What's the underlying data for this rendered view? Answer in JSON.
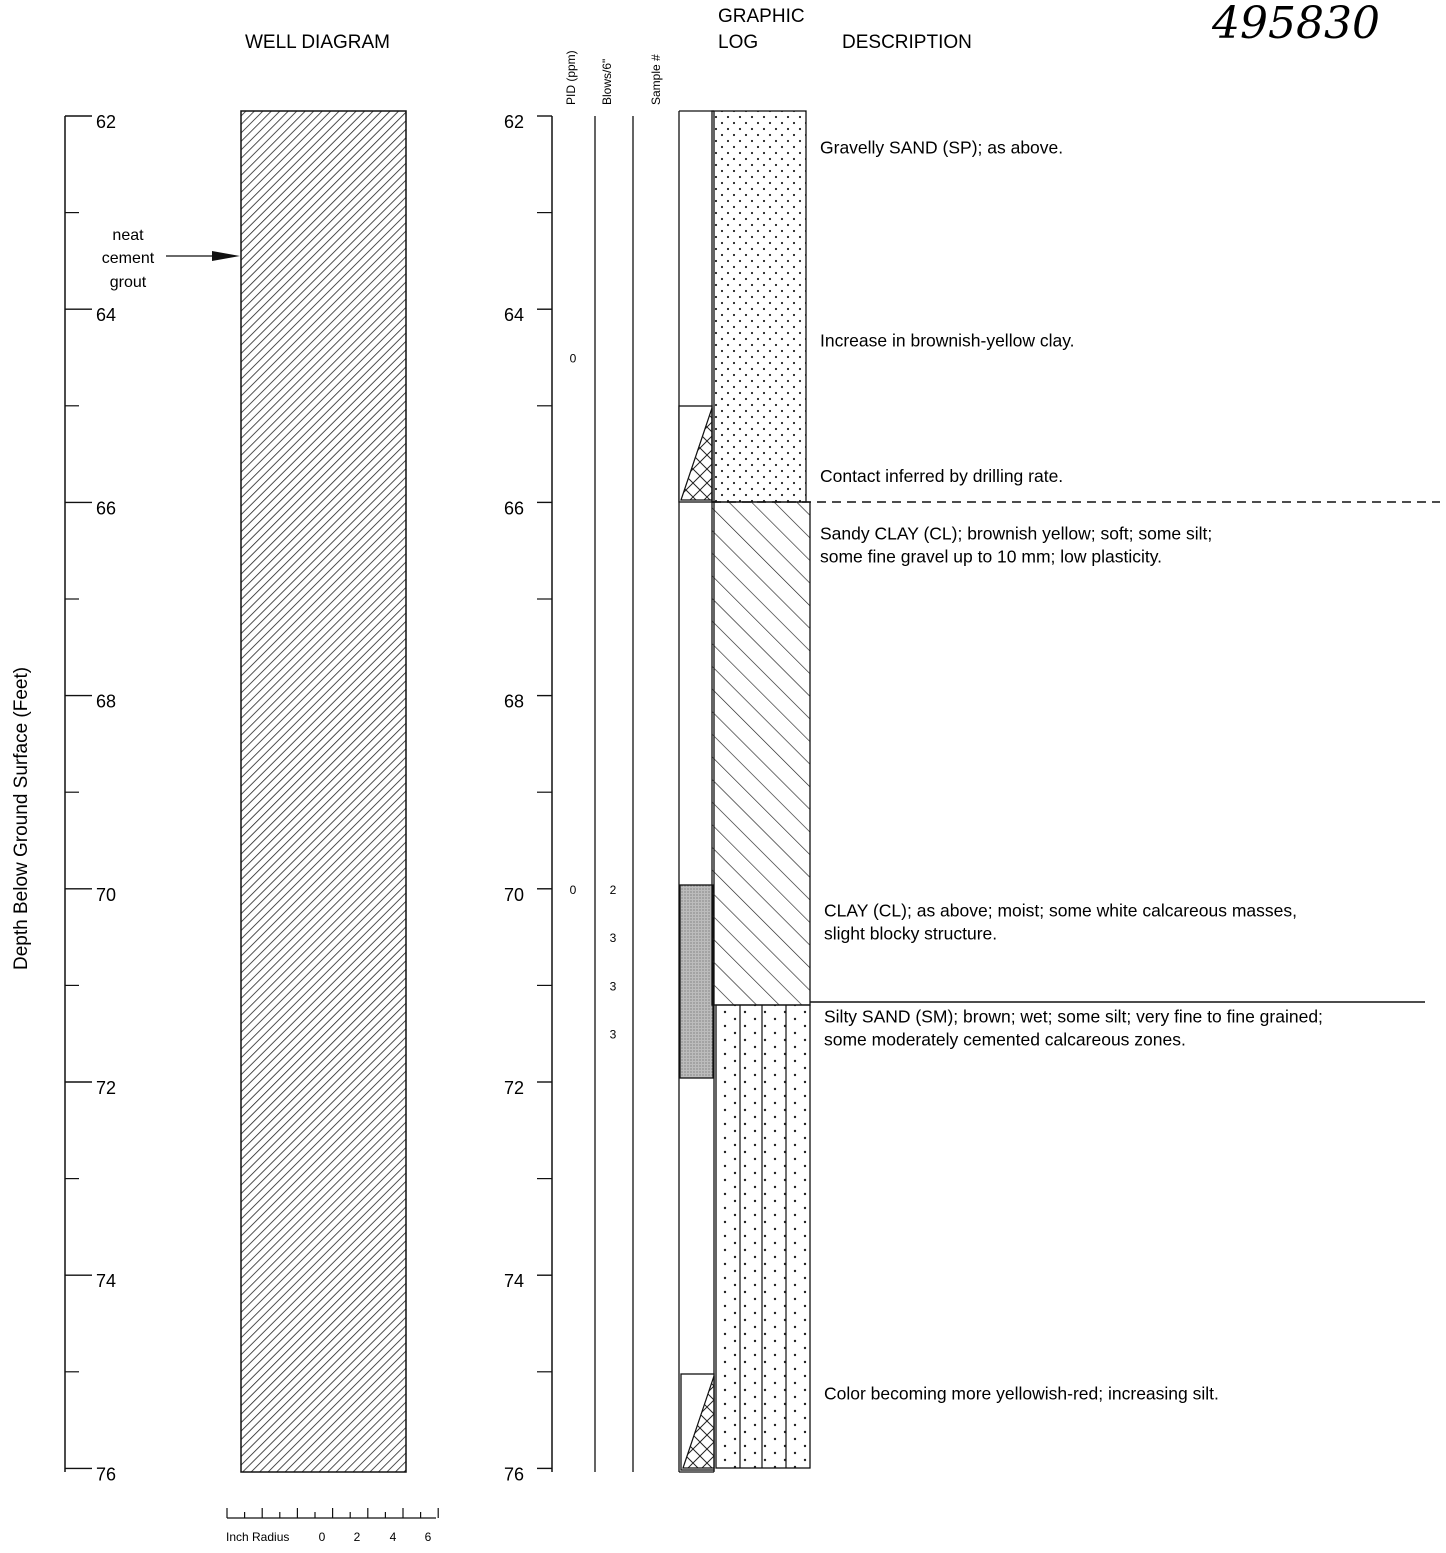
{
  "document_number": "495830",
  "headers": {
    "well_diagram": "WELL DIAGRAM",
    "graphic_1": "GRAPHIC",
    "graphic_2": "LOG",
    "description": "DESCRIPTION",
    "pid": "PID (ppm)",
    "blows": "Blows/6\"",
    "sample": "Sample #"
  },
  "axis_label": "Depth Below Ground Surface (Feet)",
  "depth_ticks": [
    "62",
    "64",
    "66",
    "68",
    "70",
    "72",
    "74",
    "76"
  ],
  "annotation": {
    "line1": "neat",
    "line2": "cement",
    "line3": "grout"
  },
  "scale": {
    "label": "Inch Radius",
    "values": [
      "0",
      "2",
      "4",
      "6"
    ]
  },
  "pid_readings": [
    {
      "depth": 64.5,
      "value": "0"
    },
    {
      "depth": 70,
      "value": "0"
    }
  ],
  "blow_counts": [
    {
      "depth": 70,
      "value": "2"
    },
    {
      "depth": 70.5,
      "value": "3"
    },
    {
      "depth": 71,
      "value": "3"
    },
    {
      "depth": 71.5,
      "value": "3"
    }
  ],
  "descriptions": [
    {
      "depth": 62.2,
      "lines": [
        "Gravelly SAND (SP); as above."
      ]
    },
    {
      "depth": 64.2,
      "lines": [
        "Increase in brownish-yellow clay."
      ]
    },
    {
      "depth": 65.6,
      "lines": [
        "Contact inferred by drilling rate."
      ]
    },
    {
      "depth": 66.2,
      "lines": [
        "Sandy CLAY (CL); brownish yellow; soft; some silt;",
        "some fine gravel up to 10 mm; low plasticity."
      ]
    },
    {
      "depth": 70.1,
      "lines": [
        "CLAY (CL); as above; moist; some white calcareous masses,",
        "slight blocky structure."
      ]
    },
    {
      "depth": 71.2,
      "lines": [
        "Silty SAND (SM); brown; wet; some silt; very fine to fine grained;",
        "some moderately cemented calcareous zones."
      ]
    },
    {
      "depth": 75.1,
      "lines": [
        "Color becoming more yellowish-red; increasing silt."
      ]
    }
  ],
  "depth_range": [
    62,
    76
  ]
}
